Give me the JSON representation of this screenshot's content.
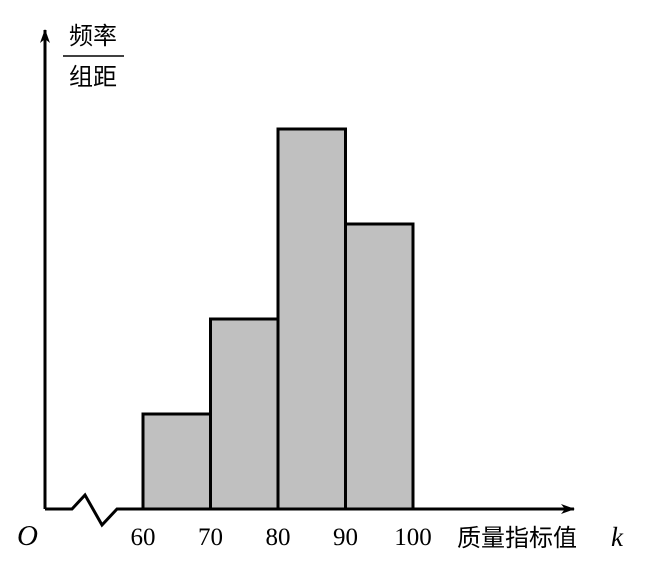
{
  "chart_data": {
    "type": "histogram",
    "bins": [
      {
        "from": 60,
        "to": 70,
        "value": 1
      },
      {
        "from": 70,
        "to": 80,
        "value": 2
      },
      {
        "from": 80,
        "to": 90,
        "value": 4
      },
      {
        "from": 90,
        "to": 100,
        "value": 3
      }
    ],
    "x_ticks": [
      "60",
      "70",
      "80",
      "90",
      "100"
    ],
    "xlabel": "质量指标值",
    "xlabel_var": "k",
    "ylabel_numerator": "频率",
    "ylabel_denominator": "组距",
    "origin_label": "O",
    "axis_break": true,
    "bar_color": "#c0c0c0",
    "grid": false,
    "ylim": [
      0,
      4.8
    ]
  }
}
